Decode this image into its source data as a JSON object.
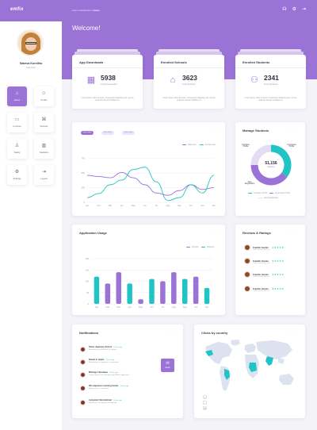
{
  "header": {
    "logo": "emfix",
    "breadcrumb_parent": "Admin Dashboard /",
    "breadcrumb_current": "Home",
    "welcome": "Welcome!",
    "icons": [
      "help-icon",
      "settings-icon",
      "logout-icon"
    ]
  },
  "user": {
    "name": "Sabeva Kornilho",
    "role": "Supervisor"
  },
  "sidebar": {
    "items": [
      {
        "label": "Home",
        "icon": "⌂"
      },
      {
        "label": "Profile",
        "icon": "☺"
      },
      {
        "label": "Courses",
        "icon": "▭"
      },
      {
        "label": "Schools",
        "icon": "⌘"
      },
      {
        "label": "Salary",
        "icon": "♙"
      },
      {
        "label": "Statistics",
        "icon": "▥"
      },
      {
        "label": "Settings",
        "icon": "⚙"
      },
      {
        "label": "Logout",
        "icon": "⇥"
      }
    ]
  },
  "stats": [
    {
      "title": "App Downloads",
      "value": "5938",
      "sub": "Total Downloads",
      "icon": "▦",
      "desc": "Lorem ipsum dolor sit amet, consectetur adipiscing elit, sed do eiusmod tempor incididunt ut"
    },
    {
      "title": "Enrolled Schools",
      "value": "3623",
      "sub": "Total Schools",
      "icon": "⌂",
      "desc": "Lorem ipsum dolor sit amet, consectetur adipiscing elit, sed do eiusmod tempor incididunt ut"
    },
    {
      "title": "Enrolled Students",
      "value": "2341",
      "sub": "Total Students",
      "icon": "⚇",
      "desc": "Lorem ipsum dolor sit amet, consectetur adipiscing elit, sed do eiusmod tempor incididunt ut"
    }
  ],
  "line_card": {
    "chips": [
      "Item Label",
      "Item Label",
      "Item Label"
    ],
    "legend": [
      "Male user",
      "Female user"
    ],
    "dots": "· · · ·"
  },
  "students_card": {
    "title": "Manage Students",
    "center_value": "51,156",
    "center_label": "Students",
    "labels": [
      "Complete Profile",
      "Incomplete Profile",
      "New Registration"
    ],
    "legend": [
      "Complete Profile",
      "Incomplete Profile",
      "New Registration"
    ],
    "dots": "· · · ·"
  },
  "usage_card": {
    "title": "Application Usage",
    "legend": [
      "Schools",
      "Students"
    ],
    "dots": "· · · ·"
  },
  "reviews_card": {
    "title": "Reviews & Ratings",
    "dots": "· · · ·",
    "stars": "★★★★★",
    "reviews": [
      {
        "name": "Frankln Garten",
        "date": "Lorem ipsum dolor sit"
      },
      {
        "name": "Frankln Garten",
        "date": "Lorem ipsum dolor sit"
      },
      {
        "name": "Frankln Garten",
        "date": "Lorem ipsum dolor sit"
      },
      {
        "name": "Frankln Garten",
        "date": "Lorem ipsum dolor sit"
      }
    ]
  },
  "notifications": {
    "title": "Notifications",
    "dots": "· · · ·",
    "read_label": "Read",
    "items": [
      {
        "title": "Swiss Japanese School",
        "time": "13 min ago",
        "text": "Registration just finished. Hi student"
      },
      {
        "title": "Dream in Japan",
        "time": "13 min ago",
        "text": "Registration fee payment is completed"
      },
      {
        "title": "Mitsingi x Boutique",
        "time": "13 min ago",
        "text": "Online courses are running using bitbeter application"
      },
      {
        "title": "ISC Japanese Learning Center",
        "time": "13 min ago",
        "text": "Registration is completed"
      },
      {
        "title": "Lanyunari International",
        "time": "13 min ago",
        "text": "Registration fee payment completed"
      }
    ]
  },
  "map_card": {
    "title": "Clicks by country",
    "dots": "· · · ·",
    "controls": [
      "+",
      "-",
      "⟲"
    ]
  },
  "colors": {
    "purple": "#9b72d6",
    "teal": "#20c4c4",
    "lavender": "#d9cff0"
  },
  "chart_data": [
    {
      "type": "line",
      "x": [
        "Jan",
        "Feb",
        "Mar",
        "Apr",
        "May",
        "Jun",
        "Jul",
        "Aug",
        "Sep",
        "Oct",
        "Nov",
        "Dec"
      ],
      "y_ticks": [
        0,
        250,
        500,
        750
      ],
      "ylim": [
        0,
        800
      ],
      "grid": true,
      "legend_placement": "top-right",
      "series": [
        {
          "name": "Male user",
          "color": "#9b72d6",
          "values": [
            460,
            440,
            420,
            510,
            420,
            300,
            160,
            120,
            200,
            300,
            220,
            250
          ]
        },
        {
          "name": "Female user",
          "color": "#20c4c4",
          "values": [
            80,
            150,
            300,
            380,
            560,
            600,
            350,
            30,
            80,
            300,
            160,
            460
          ]
        }
      ]
    },
    {
      "type": "pie",
      "categories": [
        "Complete Profile",
        "Incomplete Profile",
        "New Registration"
      ],
      "values": [
        35,
        40,
        25
      ],
      "colors": [
        "#20c4c4",
        "#9b72d6",
        "#e4dcf3"
      ]
    },
    {
      "type": "bar",
      "categories": [
        "Jan",
        "Feb",
        "Mar",
        "Apr",
        "May",
        "Jun",
        "Jul",
        "Aug",
        "Sep",
        "Oct",
        "Nov"
      ],
      "y_ticks": [
        "0",
        "5k",
        "10k",
        "15k",
        "20k"
      ],
      "ylim": [
        0,
        20000
      ],
      "legend_placement": "top-right",
      "series": [
        {
          "name": "Schools",
          "color": "#9b72d6",
          "values": [
            0,
            9000,
            14000,
            0,
            2000,
            0,
            10000,
            14000,
            0,
            12000,
            0
          ]
        },
        {
          "name": "Students",
          "color": "#20c4c4",
          "values": [
            12000,
            0,
            0,
            9000,
            0,
            11000,
            0,
            0,
            11000,
            0,
            7000
          ]
        }
      ]
    }
  ]
}
